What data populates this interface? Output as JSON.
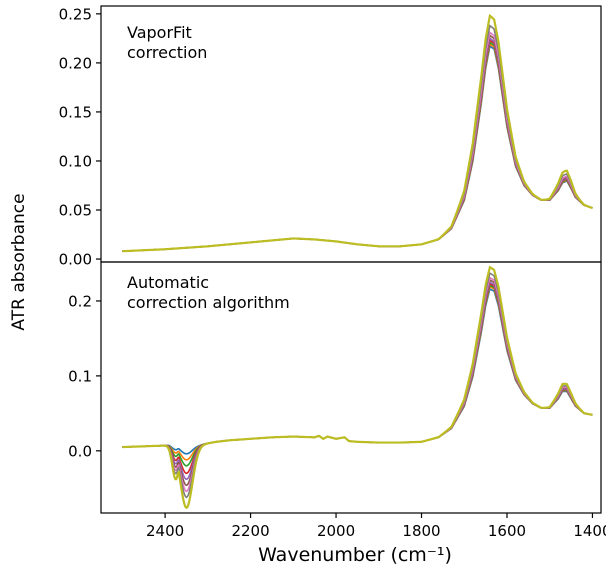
{
  "chart_data": [
    {
      "type": "line",
      "annotation": [
        "VaporFit",
        "correction"
      ],
      "ylabel": "ATR absorbance",
      "xlabel": "",
      "x_reversed": true,
      "xlim": [
        2550,
        1380
      ],
      "ylim": [
        -0.003,
        0.258
      ],
      "yticks": [
        0.0,
        0.05,
        0.1,
        0.15,
        0.2,
        0.25
      ],
      "ytick_labels": [
        "0.00",
        "0.05",
        "0.10",
        "0.15",
        "0.20",
        "0.25"
      ],
      "series_colors": [
        "#1f77b4",
        "#ff7f0e",
        "#2ca02c",
        "#d62728",
        "#9467bd",
        "#8c564b",
        "#e377c2",
        "#7f7f7f",
        "#bcbd22"
      ],
      "peak_values_1640": [
        0.217,
        0.219,
        0.221,
        0.223,
        0.225,
        0.228,
        0.231,
        0.238,
        0.248
      ],
      "x": [
        2500,
        2400,
        2300,
        2200,
        2150,
        2100,
        2050,
        2000,
        1950,
        1900,
        1850,
        1800,
        1760,
        1730,
        1700,
        1680,
        1660,
        1650,
        1640,
        1630,
        1620,
        1600,
        1580,
        1560,
        1540,
        1520,
        1500,
        1480,
        1470,
        1460,
        1450,
        1440,
        1420,
        1400
      ],
      "y_base": [
        0.008,
        0.01,
        0.013,
        0.017,
        0.019,
        0.021,
        0.02,
        0.018,
        0.015,
        0.013,
        0.013,
        0.015,
        0.02,
        0.031,
        0.06,
        0.1,
        0.16,
        0.195,
        0.218,
        0.215,
        0.195,
        0.135,
        0.095,
        0.075,
        0.065,
        0.06,
        0.06,
        0.07,
        0.078,
        0.08,
        0.072,
        0.063,
        0.055,
        0.052
      ]
    },
    {
      "type": "line",
      "annotation": [
        "Automatic",
        "correction algorithm"
      ],
      "ylabel": "",
      "xlabel": "Wavenumber (cm⁻¹)",
      "x_reversed": true,
      "xlim": [
        2550,
        1380
      ],
      "ylim": [
        -0.083,
        0.252
      ],
      "yticks": [
        0.0,
        0.1,
        0.2
      ],
      "ytick_labels": [
        "0.0",
        "0.1",
        "0.2"
      ],
      "xticks": [
        2400,
        2200,
        2000,
        1800,
        1600,
        1400
      ],
      "xtick_labels": [
        "2400",
        "2200",
        "2000",
        "1800",
        "1600",
        "1400"
      ],
      "series_colors": [
        "#1f77b4",
        "#ff7f0e",
        "#2ca02c",
        "#d62728",
        "#9467bd",
        "#8c564b",
        "#e377c2",
        "#7f7f7f",
        "#bcbd22"
      ],
      "peak_values_1640": [
        0.216,
        0.219,
        0.221,
        0.223,
        0.225,
        0.228,
        0.231,
        0.237,
        0.245
      ],
      "dip_values_2350": [
        -0.004,
        -0.012,
        -0.02,
        -0.03,
        -0.038,
        -0.046,
        -0.054,
        -0.062,
        -0.076
      ],
      "x": [
        2500,
        2400,
        2390,
        2380,
        2370,
        2360,
        2350,
        2340,
        2330,
        2320,
        2310,
        2300,
        2280,
        2250,
        2200,
        2150,
        2100,
        2050,
        2040,
        2030,
        2020,
        2000,
        1980,
        1970,
        1950,
        1900,
        1850,
        1800,
        1760,
        1730,
        1700,
        1680,
        1660,
        1650,
        1640,
        1630,
        1620,
        1600,
        1580,
        1560,
        1540,
        1520,
        1500,
        1480,
        1470,
        1460,
        1450,
        1440,
        1420,
        1400
      ],
      "y_base": [
        0.005,
        0.007,
        0.008,
        0.008,
        0.008,
        0.008,
        0.008,
        0.008,
        0.008,
        0.008,
        0.009,
        0.01,
        0.012,
        0.014,
        0.016,
        0.018,
        0.019,
        0.018,
        0.02,
        0.016,
        0.019,
        0.016,
        0.018,
        0.013,
        0.012,
        0.011,
        0.011,
        0.012,
        0.018,
        0.03,
        0.06,
        0.1,
        0.16,
        0.195,
        0.218,
        0.215,
        0.195,
        0.135,
        0.095,
        0.075,
        0.063,
        0.057,
        0.057,
        0.07,
        0.08,
        0.08,
        0.07,
        0.06,
        0.05,
        0.048
      ]
    }
  ]
}
